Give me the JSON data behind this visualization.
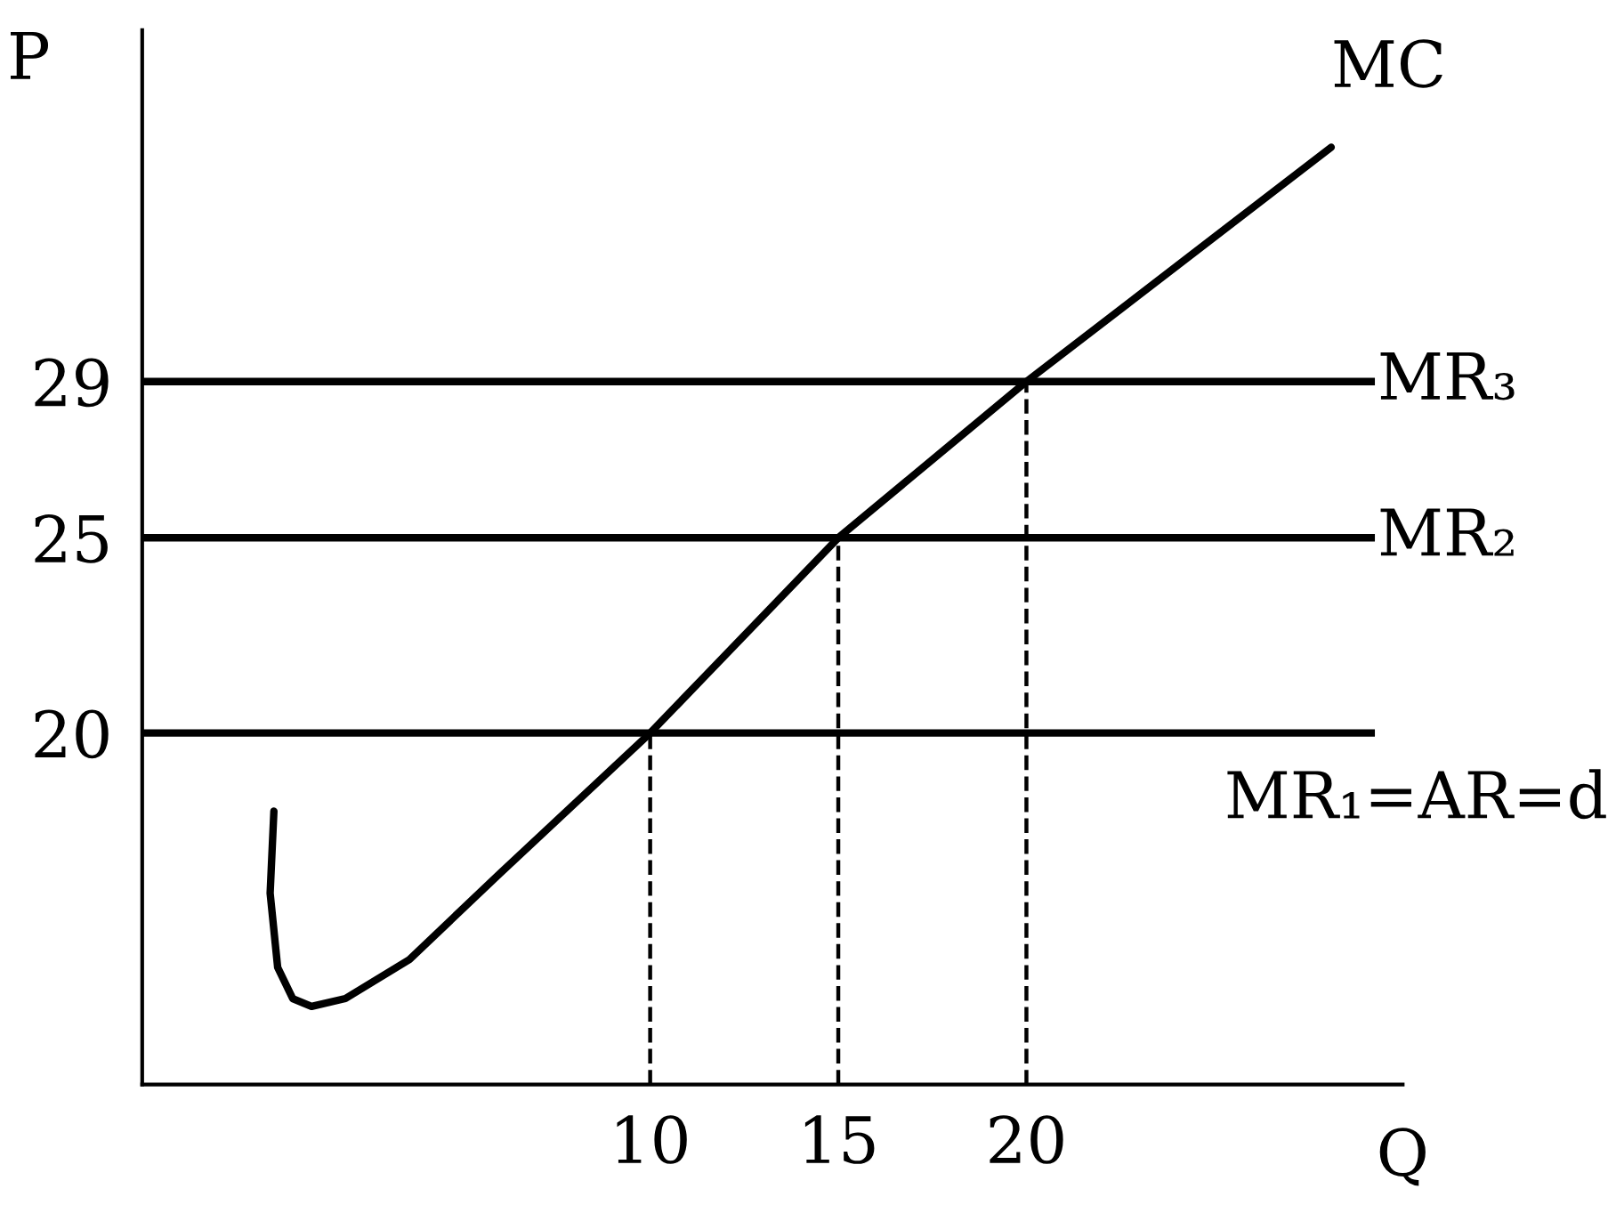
{
  "chart_data": {
    "type": "line",
    "xlabel": "Q",
    "ylabel": "P",
    "xlim": [
      -3.5,
      30
    ],
    "ylim": [
      11,
      38
    ],
    "xticks": [
      10,
      15,
      20
    ],
    "yticks": [
      20,
      25,
      29
    ],
    "grid": false,
    "marker": "none",
    "series": [
      {
        "name": "MC",
        "color": "#000000",
        "line_style": "solid",
        "x": [
          0.0,
          -0.1,
          0.1,
          0.5,
          1.0,
          1.9,
          3.6,
          6.0,
          10,
          15,
          20,
          28.1
        ],
        "values": [
          18.0,
          15.9,
          14.0,
          13.2,
          13.0,
          13.2,
          14.2,
          16.4,
          20,
          25,
          29,
          35
        ]
      },
      {
        "color": "#000000",
        "line_style": "dashed",
        "x": [
          10,
          10
        ],
        "values": [
          11,
          20
        ]
      },
      {
        "color": "#000000",
        "line_style": "dashed",
        "x": [
          15,
          15
        ],
        "values": [
          11,
          25
        ]
      },
      {
        "color": "#000000",
        "line_style": "dashed",
        "x": [
          20,
          20
        ],
        "values": [
          11,
          29
        ]
      }
    ],
    "ref_lines": [
      {
        "axis": "y",
        "value": 29,
        "label": "MR₃",
        "color": "#000000"
      },
      {
        "axis": "y",
        "value": 25,
        "label": "MR₂",
        "color": "#000000"
      },
      {
        "axis": "y",
        "value": 20,
        "label": "MR₁=AR=d",
        "color": "#000000"
      }
    ]
  }
}
